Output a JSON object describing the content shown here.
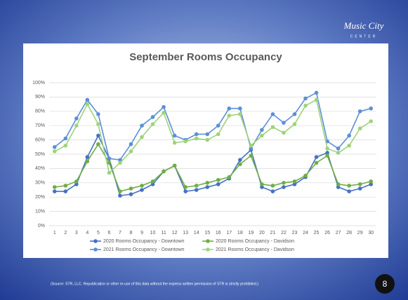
{
  "logo": {
    "name": "Music City",
    "subtitle": "CENTER"
  },
  "chart_data": {
    "type": "line",
    "title": "September Rooms Occupancy",
    "categories": [
      "1",
      "2",
      "3",
      "4",
      "5",
      "6",
      "7",
      "8",
      "9",
      "10",
      "11",
      "12",
      "13",
      "14",
      "15",
      "16",
      "17",
      "18",
      "19",
      "20",
      "21",
      "22",
      "23",
      "24",
      "25",
      "26",
      "27",
      "28",
      "29",
      "30"
    ],
    "series": [
      {
        "name": "2020 Rooms Occupancy - Downtown",
        "color": "#4472c4",
        "values": [
          24,
          24,
          29,
          48,
          63,
          47,
          21,
          22,
          25,
          29,
          38,
          42,
          24,
          25,
          27,
          29,
          33,
          46,
          53,
          27,
          24,
          27,
          29,
          34,
          48,
          51,
          27,
          24,
          26,
          29
        ]
      },
      {
        "name": "2020 Rooms Occupancy - Davidson",
        "color": "#70ad47",
        "values": [
          27,
          28,
          31,
          45,
          57,
          44,
          24,
          26,
          28,
          31,
          38,
          42,
          27,
          28,
          30,
          32,
          34,
          43,
          49,
          29,
          28,
          30,
          31,
          35,
          44,
          49,
          29,
          28,
          29,
          31
        ]
      },
      {
        "name": "2021 Rooms Occupancy - Downtown",
        "color": "#5b8fd8",
        "values": [
          55,
          61,
          75,
          88,
          78,
          47,
          46,
          57,
          70,
          76,
          83,
          63,
          60,
          64,
          64,
          70,
          82,
          82,
          54,
          67,
          78,
          72,
          78,
          89,
          93,
          59,
          54,
          63,
          80,
          82
        ]
      },
      {
        "name": "2021 Rooms Occupancy - Davidson",
        "color": "#9fd37a",
        "values": [
          52,
          56,
          70,
          85,
          71,
          37,
          44,
          52,
          62,
          71,
          79,
          58,
          59,
          61,
          60,
          64,
          77,
          78,
          56,
          63,
          69,
          65,
          71,
          84,
          88,
          54,
          51,
          56,
          68,
          73
        ]
      }
    ],
    "ylim": [
      0,
      100
    ],
    "yticks": [
      {
        "value": 0,
        "label": "0%"
      },
      {
        "value": 10,
        "label": "10%"
      },
      {
        "value": 20,
        "label": "20%"
      },
      {
        "value": 30,
        "label": "30%"
      },
      {
        "value": 40,
        "label": "40%"
      },
      {
        "value": 50,
        "label": "50%"
      },
      {
        "value": 60,
        "label": "60%"
      },
      {
        "value": 70,
        "label": "70%"
      },
      {
        "value": 80,
        "label": "80%"
      },
      {
        "value": 90,
        "label": "90%"
      },
      {
        "value": 100,
        "label": "100%"
      }
    ],
    "grid": true,
    "legend": "bottom"
  },
  "footnote": "(Source: STR, LLC. Republication or other re-use of this data without the express written permission of STR is strictly prohibited.)",
  "page_number": "8"
}
